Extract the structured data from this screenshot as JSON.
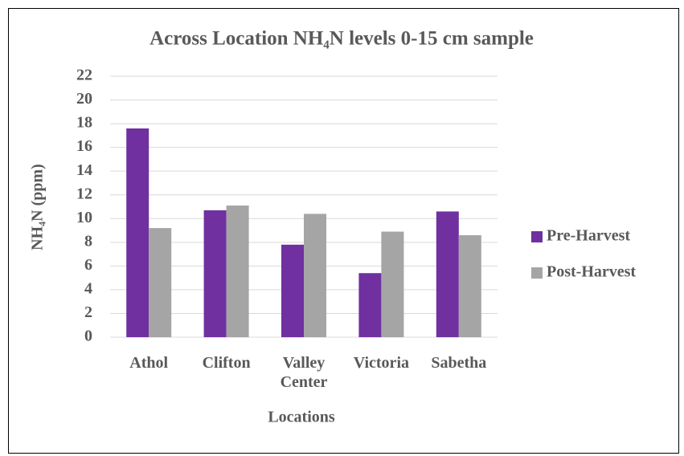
{
  "chart_data": {
    "type": "bar",
    "title": "Across Location NH₄N levels 0-15 cm sample",
    "x_label": "Locations",
    "y_label": "NH₄N (ppm)",
    "categories": [
      "Athol",
      "Clifton",
      "Valley Center",
      "Victoria",
      "Sabetha"
    ],
    "series": [
      {
        "name": "Pre-Harvest",
        "color": "#7030a0",
        "values": [
          17.6,
          10.7,
          7.8,
          5.4,
          10.6
        ]
      },
      {
        "name": "Post-Harvest",
        "color": "#a5a5a5",
        "values": [
          9.2,
          11.1,
          10.4,
          8.9,
          8.6
        ]
      }
    ],
    "ylim": [
      0,
      22
    ],
    "yticks": [
      0,
      2,
      4,
      6,
      8,
      10,
      12,
      14,
      16,
      18,
      20,
      22
    ],
    "grid": true,
    "legend": "right"
  }
}
